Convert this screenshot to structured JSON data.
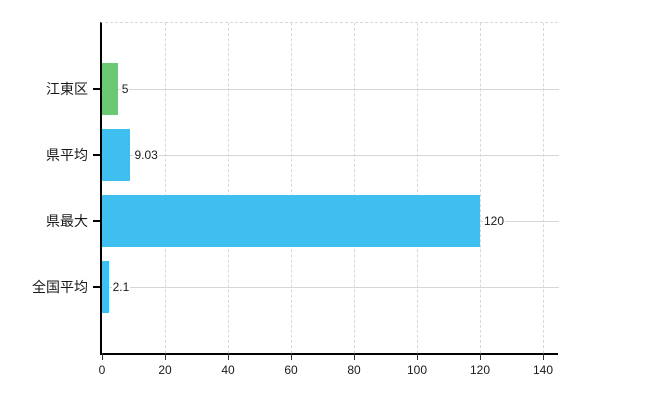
{
  "chart_data": {
    "type": "bar",
    "orientation": "horizontal",
    "title": "",
    "xlabel": "",
    "ylabel": "",
    "categories": [
      "江東区",
      "県平均",
      "県最大",
      "全国平均"
    ],
    "values": [
      5,
      9.03,
      120,
      2.1
    ],
    "value_labels": [
      "5",
      "9.03",
      "120",
      "2.1"
    ],
    "bar_colors": [
      "#6cc973",
      "#3fbfef",
      "#3fbfef",
      "#3fbfef"
    ],
    "xlim": [
      0,
      140
    ],
    "xticks": [
      0,
      20,
      40,
      60,
      80,
      100,
      120,
      140
    ],
    "grid": "vertical dashed at each x tick, horizontal solid at each category center",
    "legend": false,
    "background": "#ffffff"
  },
  "colors": {
    "bar_blue": "#3fbfef",
    "bar_green": "#6cc973",
    "grid_vertical": "#d8d8d8",
    "grid_horizontal": "#d4d8d4",
    "axis": "#000000",
    "text": "#1a1a1a",
    "background": "#ffffff"
  }
}
